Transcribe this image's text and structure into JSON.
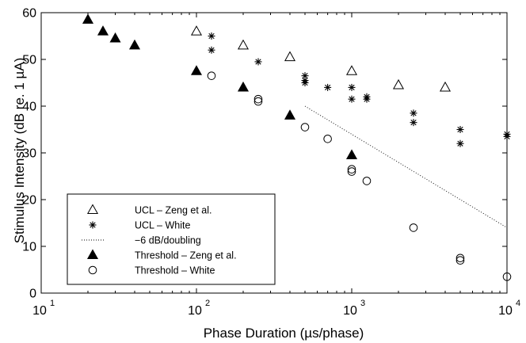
{
  "chart_data": {
    "type": "scatter",
    "title": "",
    "xlabel": "Phase Duration (µs/phase)",
    "ylabel": "Stimulus Intensity (dB re. 1 µA)",
    "xscale": "log",
    "xlim": [
      10,
      10000
    ],
    "ylim": [
      0,
      60
    ],
    "x_ticks": [
      {
        "value": 10,
        "base": "10",
        "exp": "1"
      },
      {
        "value": 100,
        "base": "10",
        "exp": "2"
      },
      {
        "value": 1000,
        "base": "10",
        "exp": "3"
      },
      {
        "value": 10000,
        "base": "10",
        "exp": "4"
      }
    ],
    "y_ticks": [
      0,
      10,
      20,
      30,
      40,
      50,
      60
    ],
    "y_tick_labels": [
      "0",
      "10",
      "20",
      "30",
      "40",
      "50",
      "60"
    ],
    "grid": false,
    "legend_position": "bottom-left",
    "series": [
      {
        "name": "UCL – Zeng et al.",
        "marker": "triangle-open",
        "x": [
          100,
          200,
          400,
          1000,
          2000,
          4000
        ],
        "y": [
          56,
          53,
          50.5,
          47.5,
          44.5,
          44
        ]
      },
      {
        "name": "UCL – White",
        "marker": "asterisk",
        "x": [
          125,
          125,
          250,
          500,
          500,
          500,
          700,
          1000,
          1000,
          1250,
          1250,
          2500,
          2500,
          5000,
          5000,
          10000,
          10000
        ],
        "y": [
          55,
          52,
          49.5,
          46.5,
          45.5,
          45,
          44,
          44,
          41.5,
          42,
          41.5,
          38.5,
          36.5,
          35,
          32,
          34,
          33.5
        ]
      },
      {
        "name": "−6 dB/doubling",
        "marker": "dotted-line",
        "x": [
          500,
          10000
        ],
        "y": [
          40,
          14
        ]
      },
      {
        "name": "Threshold – Zeng et al.",
        "marker": "triangle-filled",
        "x": [
          20,
          25,
          30,
          40,
          100,
          200,
          400,
          1000
        ],
        "y": [
          58.5,
          56,
          54.5,
          53,
          47.5,
          44,
          38,
          29.5
        ]
      },
      {
        "name": "Threshold – White",
        "marker": "circle-open",
        "x": [
          125,
          250,
          250,
          500,
          700,
          1000,
          1000,
          1250,
          2500,
          5000,
          5000,
          10000
        ],
        "y": [
          46.5,
          41.5,
          41,
          35.5,
          33,
          26.5,
          26,
          24,
          14,
          7.5,
          7,
          3.5
        ]
      }
    ]
  }
}
